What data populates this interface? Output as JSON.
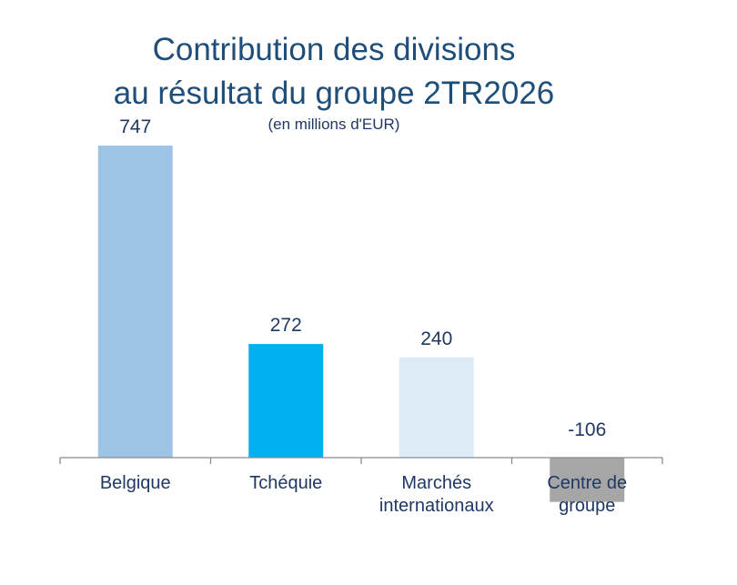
{
  "chart_data": {
    "type": "bar",
    "title_lines": [
      "Contribution des divisions",
      "au résultat du groupe 2TR2026"
    ],
    "subtitle": "(en millions d'EUR)",
    "categories": [
      [
        "Belgique"
      ],
      [
        "Tchéquie"
      ],
      [
        "Marchés",
        "internationaux"
      ],
      [
        "Centre de",
        "groupe"
      ]
    ],
    "values": [
      747,
      272,
      240,
      -106
    ],
    "value_labels": [
      "747",
      "272",
      "240",
      "-106"
    ],
    "bar_colors": [
      "#9dc3e6",
      "#00b0f0",
      "#ddebf7",
      "#a6a6a6"
    ],
    "xlabel": "",
    "ylabel": "",
    "grid": false,
    "legend": "none"
  }
}
